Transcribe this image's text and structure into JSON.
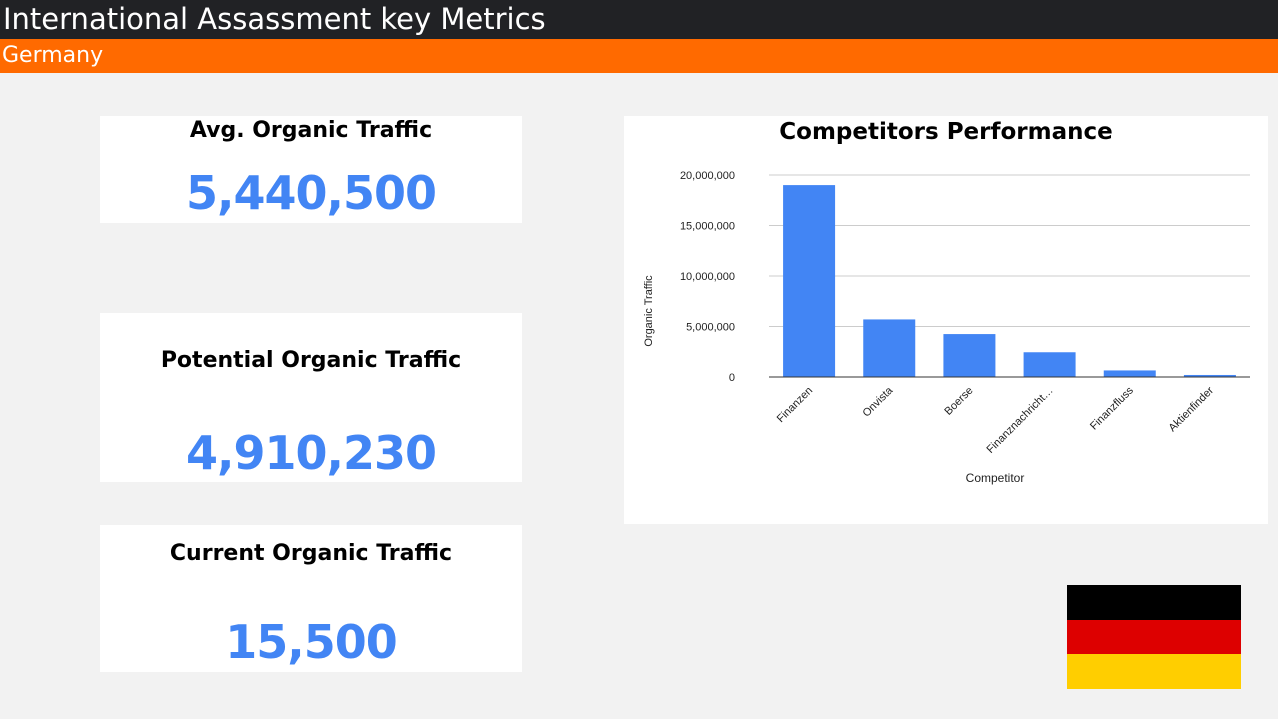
{
  "header": {
    "title": "International Assassment key Metrics",
    "subtitle": "Germany"
  },
  "metrics": {
    "avg": {
      "label": "Avg. Organic Traffic",
      "value": "5,440,500"
    },
    "potential": {
      "label": "Potential Organic Traffic",
      "value": "4,910,230"
    },
    "current": {
      "label": "Current Organic Traffic",
      "value": "15,500"
    }
  },
  "colors": {
    "header_bg": "#212225",
    "accent": "#ff6a00",
    "value": "#4285f4",
    "bar": "#4285f4"
  },
  "flag": {
    "country": "Germany",
    "stripes": [
      "#000000",
      "#dd0000",
      "#ffce00"
    ]
  },
  "chart_data": {
    "type": "bar",
    "title": "Competitors  Performance",
    "xlabel": "Competitor",
    "ylabel": "Organic Traffic",
    "categories": [
      "Finanzen",
      "Onvista",
      "Boerse",
      "Finanznachricht…",
      "Finanzfluss",
      "Aktienfinder"
    ],
    "values": [
      19000000,
      5700000,
      4250000,
      2450000,
      650000,
      200000
    ],
    "ylim": [
      0,
      20000000
    ],
    "yticks": [
      "0",
      "5,000,000",
      "10,000,000",
      "15,000,000",
      "20,000,000"
    ],
    "ytick_values": [
      0,
      5000000,
      10000000,
      15000000,
      20000000
    ],
    "grid": true,
    "legend": "none"
  }
}
